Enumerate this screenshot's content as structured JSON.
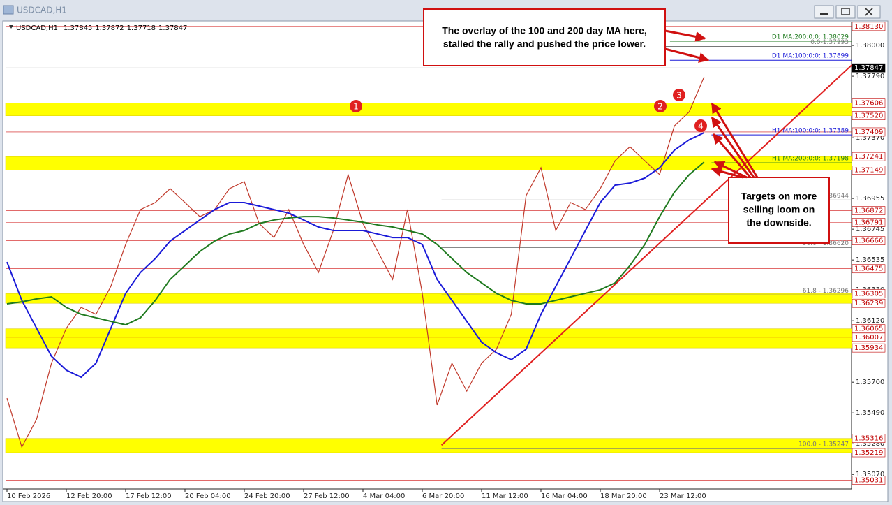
{
  "window": {
    "title": "USDCAD,H1"
  },
  "chart_data": {
    "type": "line",
    "symbol": "USDCAD,H1",
    "ohlc": [
      1.37845,
      1.37872,
      1.37718,
      1.37847
    ],
    "x": [
      "10 Feb 2026",
      null,
      null,
      null,
      "12 Feb 20:00",
      null,
      null,
      null,
      "17 Feb 12:00",
      null,
      null,
      null,
      "20 Feb 04:00",
      null,
      null,
      null,
      "24 Feb 20:00",
      null,
      null,
      null,
      "27 Feb 12:00",
      null,
      null,
      null,
      "4 Mar 04:00",
      null,
      null,
      null,
      "6 Mar 20:00",
      null,
      null,
      null,
      "11 Mar 12:00",
      null,
      null,
      null,
      "16 Mar 04:00",
      null,
      null,
      null,
      "18 Mar 20:00",
      null,
      null,
      null,
      "23 Mar 12:00",
      null,
      null,
      null
    ],
    "series": [
      {
        "color": "#c0392b",
        "values": [
          1.35591,
          1.35257,
          1.35448,
          1.3583,
          1.36068,
          1.36211,
          1.36164,
          1.36354,
          1.36641,
          1.36879,
          1.36927,
          1.37022,
          1.36927,
          1.36831,
          1.36879,
          1.37022,
          1.3707,
          1.36784,
          1.36688,
          1.36879,
          1.36641,
          1.3645,
          1.36736,
          1.37118,
          1.36784,
          1.36593,
          1.36402,
          1.36879,
          1.36307,
          1.35544,
          1.3583,
          1.35639,
          1.3583,
          1.35925,
          1.36164,
          1.36974,
          1.37165,
          1.36736,
          1.36927,
          1.36879,
          1.37022,
          1.37213,
          1.37308,
          1.37213,
          1.37118,
          1.37451,
          1.37547,
          1.37785
        ]
      },
      {
        "color": "#1a1ad8",
        "values": [
          1.36521,
          1.36259,
          1.36068,
          1.35877,
          1.35782,
          1.35734,
          1.3583,
          1.36068,
          1.36307,
          1.3645,
          1.36545,
          1.36664,
          1.36736,
          1.36808,
          1.36879,
          1.36927,
          1.36927,
          1.36903,
          1.36879,
          1.36855,
          1.36808,
          1.3676,
          1.36736,
          1.36736,
          1.36736,
          1.36712,
          1.36688,
          1.36688,
          1.36641,
          1.36402,
          1.36259,
          1.36116,
          1.35973,
          1.35901,
          1.35854,
          1.35925,
          1.36164,
          1.36354,
          1.36545,
          1.36736,
          1.36927,
          1.37046,
          1.3706,
          1.37094,
          1.37165,
          1.37285,
          1.37356,
          1.37404
        ]
      },
      {
        "color": "#1f7a1f",
        "values": [
          1.36235,
          1.36249,
          1.36269,
          1.36283,
          1.36211,
          1.36164,
          1.3614,
          1.36116,
          1.36092,
          1.3614,
          1.36259,
          1.36402,
          1.36497,
          1.36593,
          1.36664,
          1.36712,
          1.36736,
          1.36784,
          1.36808,
          1.36822,
          1.36831,
          1.36831,
          1.36822,
          1.36808,
          1.36793,
          1.36774,
          1.3676,
          1.36736,
          1.36712,
          1.36641,
          1.36545,
          1.3645,
          1.36378,
          1.36307,
          1.36259,
          1.36235,
          1.36235,
          1.36259,
          1.36283,
          1.36307,
          1.36331,
          1.36378,
          1.36497,
          1.36641,
          1.36831,
          1.36998,
          1.37118,
          1.37203
        ]
      }
    ],
    "ylim": [
      1.34971,
      1.38153
    ],
    "yticks": [
      {
        "value": 1.38,
        "label": "1.38000"
      },
      {
        "value": 1.3779,
        "label": "1.37790"
      },
      {
        "value": 1.3737,
        "label": "1.37370"
      },
      1.36955,
      1.36745,
      1.36535,
      {
        "value": 1.3633,
        "label": "1.36330"
      },
      {
        "value": 1.3612,
        "label": "1.36120"
      },
      {
        "value": 1.357,
        "label": "1.35700"
      },
      {
        "value": 1.3549,
        "label": "1.35490"
      },
      {
        "value": 1.3528,
        "label": "1.35280"
      },
      {
        "value": 1.3507,
        "label": "1.35070"
      }
    ],
    "grid": false,
    "zones": [
      {
        "high": 1.37606,
        "low": {
          "value": 1.3752,
          "label": "1.37520"
        }
      },
      {
        "high": 1.37241,
        "low": 1.37149
      },
      {
        "high": 1.36305,
        "low": 1.36239
      },
      {
        "high": 1.36065,
        "low": 1.35934
      },
      {
        "high": 1.35316,
        "low": 1.35219
      }
    ],
    "levels": [
      {
        "value": 1.3813,
        "label": "1.38130"
      },
      1.37409,
      1.36872,
      1.36791,
      1.36666,
      1.36475,
      1.36007,
      1.35031
    ],
    "current_price": 1.37847,
    "indicator_lines": [
      {
        "text": "D1 MA:200:0:0: 1.38029",
        "value": 1.38029,
        "color": "#1f7a1f",
        "x_from": 44.7
      },
      {
        "text": "0.0-1.37993",
        "value": 1.37993,
        "color": "#777777",
        "x_from": 29.3
      },
      {
        "text": "D1 MA:100:0:0: 1.37899",
        "value": 1.37899,
        "color": "#1a1ad8",
        "x_from": 44.7
      },
      {
        "text": "H1 MA:100:0:0: 1.37389",
        "value": 1.37389,
        "color": "#1a1ad8",
        "x_from": 47.5
      },
      {
        "text": "H1 MA:200:0:0: 1.37198",
        "value": 1.37198,
        "color": "#1f7a1f",
        "x_from": 47.5
      },
      {
        "text": "1.36944",
        "value": 1.36944,
        "color": "#777777",
        "x_from": 29.3
      },
      {
        "text": "50.0 - 1.36620",
        "value": 1.3662,
        "color": "#777777",
        "x_from": 29.3
      },
      {
        "text": "61.8 - 1.36296",
        "value": 1.36296,
        "color": "#777777",
        "x_from": 29.3
      },
      {
        "text": "100.0 - 1.35247",
        "value": 1.35247,
        "color": "#777777",
        "x_from": 29.3
      }
    ],
    "trend_line": {
      "x": [
        29.3,
        57.0
      ],
      "y": [
        1.3527,
        1.3787
      ],
      "color": "#e02020"
    },
    "markers": [
      "1",
      "2",
      "3",
      "4"
    ],
    "annotations": [
      [
        "The overlay of the 100 and 200 day MA here,",
        "stalled the rally and pushed the price lower."
      ],
      [
        "Targets on more",
        "selling loom on",
        "the downside."
      ]
    ]
  }
}
